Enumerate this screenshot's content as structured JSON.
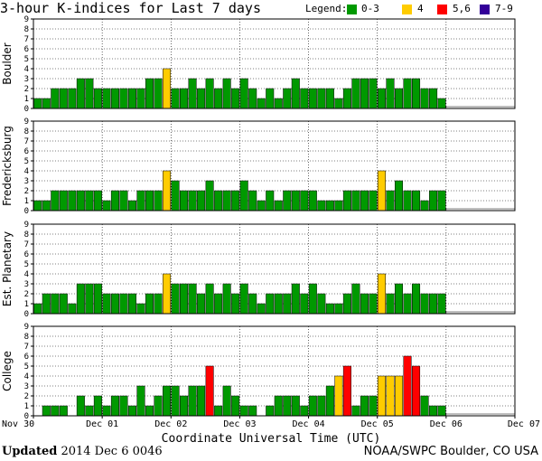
{
  "title": "3-hour K-indices for Last 7 days",
  "legend": {
    "label": "Legend:",
    "items": [
      {
        "label": "0-3",
        "color": "#009900"
      },
      {
        "label": "4",
        "color": "#ffcc00"
      },
      {
        "label": "5,6",
        "color": "#ff0000"
      },
      {
        "label": "7-9",
        "color": "#330099"
      }
    ]
  },
  "footer": {
    "updated_label": "Updated",
    "updated_value": "2014 Dec  6 0046",
    "credit": "NOAA/SWPC Boulder, CO USA"
  },
  "chart_data": {
    "type": "bar",
    "xlabel": "Coordinate Universal Time (UTC)",
    "x_ticks": [
      "Nov 30",
      "Dec 01",
      "Dec 02",
      "Dec 03",
      "Dec 04",
      "Dec 05",
      "Dec 06",
      "Dec 07"
    ],
    "ylim": [
      0,
      9
    ],
    "y_ticks": [
      0,
      1,
      2,
      3,
      4,
      5,
      6,
      7,
      8,
      9
    ],
    "bins_per_day": 8,
    "grid": true,
    "series": [
      {
        "name": "Boulder",
        "values": [
          1,
          1,
          2,
          2,
          2,
          3,
          3,
          2,
          2,
          2,
          2,
          2,
          2,
          3,
          3,
          4,
          2,
          2,
          3,
          2,
          3,
          2,
          3,
          2,
          3,
          2,
          1,
          2,
          1,
          2,
          3,
          2,
          2,
          2,
          2,
          1,
          2,
          3,
          3,
          3,
          2,
          3,
          2,
          3,
          3,
          2,
          2,
          1
        ]
      },
      {
        "name": "Fredericksburg",
        "values": [
          1,
          1,
          2,
          2,
          2,
          2,
          2,
          2,
          1,
          2,
          2,
          1,
          2,
          2,
          2,
          4,
          3,
          2,
          2,
          2,
          3,
          2,
          2,
          2,
          3,
          2,
          1,
          2,
          1,
          2,
          2,
          2,
          2,
          1,
          1,
          1,
          2,
          2,
          2,
          2,
          4,
          2,
          3,
          2,
          2,
          1,
          2,
          2
        ]
      },
      {
        "name": "Est. Planetary",
        "values": [
          1,
          2,
          2,
          2,
          1,
          3,
          3,
          3,
          2,
          2,
          2,
          2,
          1,
          2,
          2,
          4,
          3,
          3,
          3,
          2,
          3,
          2,
          3,
          2,
          3,
          2,
          1,
          2,
          2,
          2,
          3,
          2,
          3,
          2,
          1,
          1,
          2,
          3,
          2,
          2,
          4,
          2,
          3,
          2,
          3,
          2,
          2,
          2
        ]
      },
      {
        "name": "College",
        "values": [
          0,
          1,
          1,
          1,
          0,
          2,
          1,
          2,
          1,
          2,
          2,
          1,
          3,
          1,
          2,
          3,
          3,
          2,
          3,
          3,
          5,
          1,
          3,
          2,
          1,
          1,
          0,
          1,
          2,
          2,
          2,
          1,
          2,
          2,
          3,
          4,
          5,
          1,
          2,
          2,
          4,
          4,
          4,
          6,
          5,
          2,
          1,
          1
        ]
      }
    ]
  }
}
